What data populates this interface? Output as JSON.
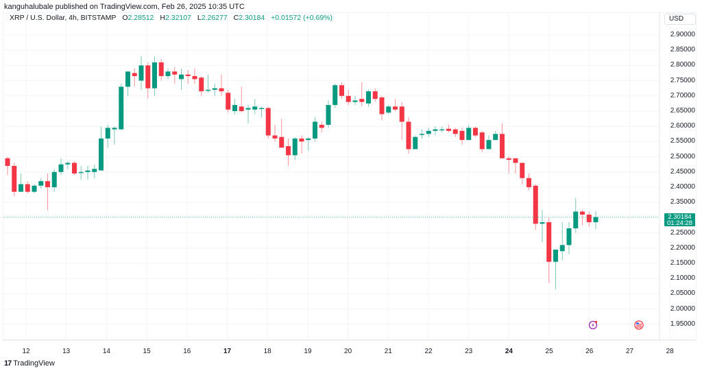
{
  "header": {
    "publish_line": "kanguhalubale published on TradingView.com, Feb 26, 2025 10:35 UTC"
  },
  "legend": {
    "symbol": "XRP / U.S. Dollar, 4h, BITSTAMP",
    "o_label": "O",
    "o_value": "2.28512",
    "h_label": "H",
    "h_value": "2.32107",
    "l_label": "L",
    "l_value": "2.26277",
    "c_label": "C",
    "c_value": "2.30184",
    "change": "+0.01572 (+0.69%)"
  },
  "price_axis": {
    "currency": "USD",
    "labels": [
      "2.90000",
      "2.85000",
      "2.80000",
      "2.75000",
      "2.70000",
      "2.65000",
      "2.60000",
      "2.55000",
      "2.50000",
      "2.45000",
      "2.40000",
      "2.35000",
      "2.25000",
      "2.20000",
      "2.15000",
      "2.10000",
      "2.05000",
      "2.00000",
      "1.95000"
    ],
    "last_price": "2.30184",
    "countdown": "01:24:28"
  },
  "date_axis": {
    "labels": [
      {
        "text": "12",
        "bold": false
      },
      {
        "text": "13",
        "bold": false
      },
      {
        "text": "14",
        "bold": false
      },
      {
        "text": "15",
        "bold": false
      },
      {
        "text": "16",
        "bold": false
      },
      {
        "text": "17",
        "bold": true
      },
      {
        "text": "18",
        "bold": false
      },
      {
        "text": "19",
        "bold": false
      },
      {
        "text": "20",
        "bold": false
      },
      {
        "text": "21",
        "bold": false
      },
      {
        "text": "22",
        "bold": false
      },
      {
        "text": "23",
        "bold": false
      },
      {
        "text": "24",
        "bold": true
      },
      {
        "text": "25",
        "bold": false
      },
      {
        "text": "26",
        "bold": false
      },
      {
        "text": "27",
        "bold": false
      },
      {
        "text": "28",
        "bold": false
      }
    ]
  },
  "footer": {
    "logo_glyph": "17",
    "brand": "TradingView"
  },
  "colors": {
    "up": "#089981",
    "down": "#f23645",
    "grid": "#f3f4f7",
    "last_price_line": "#089981"
  },
  "icons": [
    "lightning-event-icon",
    "us-flag-event-icon"
  ],
  "chart_data": {
    "type": "candlestick",
    "title": "XRP / U.S. Dollar, 4h, BITSTAMP",
    "xlabel": "",
    "ylabel": "USD",
    "ylim": [
      1.92,
      2.93
    ],
    "timeframe": "4h",
    "x_ticks": [
      "12",
      "13",
      "14",
      "15",
      "16",
      "17",
      "18",
      "19",
      "20",
      "21",
      "22",
      "23",
      "24",
      "25",
      "26",
      "27",
      "28"
    ],
    "candles": [
      {
        "o": 2.495,
        "h": 2.5,
        "l": 2.44,
        "c": 2.47
      },
      {
        "o": 2.47,
        "h": 2.48,
        "l": 2.37,
        "c": 2.385
      },
      {
        "o": 2.385,
        "h": 2.445,
        "l": 2.385,
        "c": 2.41
      },
      {
        "o": 2.41,
        "h": 2.42,
        "l": 2.38,
        "c": 2.385
      },
      {
        "o": 2.385,
        "h": 2.41,
        "l": 2.38,
        "c": 2.405
      },
      {
        "o": 2.405,
        "h": 2.43,
        "l": 2.395,
        "c": 2.42
      },
      {
        "o": 2.42,
        "h": 2.445,
        "l": 2.325,
        "c": 2.4
      },
      {
        "o": 2.4,
        "h": 2.46,
        "l": 2.385,
        "c": 2.45
      },
      {
        "o": 2.45,
        "h": 2.495,
        "l": 2.44,
        "c": 2.475
      },
      {
        "o": 2.475,
        "h": 2.485,
        "l": 2.46,
        "c": 2.48
      },
      {
        "o": 2.48,
        "h": 2.485,
        "l": 2.44,
        "c": 2.445
      },
      {
        "o": 2.45,
        "h": 2.47,
        "l": 2.425,
        "c": 2.45
      },
      {
        "o": 2.45,
        "h": 2.47,
        "l": 2.425,
        "c": 2.455
      },
      {
        "o": 2.45,
        "h": 2.475,
        "l": 2.43,
        "c": 2.46
      },
      {
        "o": 2.455,
        "h": 2.6,
        "l": 2.455,
        "c": 2.56
      },
      {
        "o": 2.56,
        "h": 2.605,
        "l": 2.53,
        "c": 2.595
      },
      {
        "o": 2.59,
        "h": 2.6,
        "l": 2.54,
        "c": 2.595
      },
      {
        "o": 2.59,
        "h": 2.74,
        "l": 2.59,
        "c": 2.73
      },
      {
        "o": 2.73,
        "h": 2.78,
        "l": 2.7,
        "c": 2.78
      },
      {
        "o": 2.775,
        "h": 2.79,
        "l": 2.73,
        "c": 2.765
      },
      {
        "o": 2.75,
        "h": 2.83,
        "l": 2.72,
        "c": 2.8
      },
      {
        "o": 2.8,
        "h": 2.81,
        "l": 2.69,
        "c": 2.725
      },
      {
        "o": 2.725,
        "h": 2.83,
        "l": 2.7,
        "c": 2.81
      },
      {
        "o": 2.81,
        "h": 2.82,
        "l": 2.75,
        "c": 2.765
      },
      {
        "o": 2.765,
        "h": 2.79,
        "l": 2.755,
        "c": 2.78
      },
      {
        "o": 2.78,
        "h": 2.795,
        "l": 2.74,
        "c": 2.77
      },
      {
        "o": 2.755,
        "h": 2.79,
        "l": 2.72,
        "c": 2.77
      },
      {
        "o": 2.77,
        "h": 2.785,
        "l": 2.74,
        "c": 2.765
      },
      {
        "o": 2.765,
        "h": 2.79,
        "l": 2.74,
        "c": 2.755
      },
      {
        "o": 2.76,
        "h": 2.765,
        "l": 2.7,
        "c": 2.715
      },
      {
        "o": 2.72,
        "h": 2.77,
        "l": 2.71,
        "c": 2.72
      },
      {
        "o": 2.72,
        "h": 2.74,
        "l": 2.7,
        "c": 2.725
      },
      {
        "o": 2.725,
        "h": 2.77,
        "l": 2.7,
        "c": 2.715
      },
      {
        "o": 2.71,
        "h": 2.72,
        "l": 2.645,
        "c": 2.655
      },
      {
        "o": 2.65,
        "h": 2.69,
        "l": 2.64,
        "c": 2.67
      },
      {
        "o": 2.665,
        "h": 2.73,
        "l": 2.645,
        "c": 2.65
      },
      {
        "o": 2.655,
        "h": 2.67,
        "l": 2.61,
        "c": 2.66
      },
      {
        "o": 2.655,
        "h": 2.69,
        "l": 2.64,
        "c": 2.665
      },
      {
        "o": 2.66,
        "h": 2.665,
        "l": 2.63,
        "c": 2.66
      },
      {
        "o": 2.66,
        "h": 2.665,
        "l": 2.56,
        "c": 2.57
      },
      {
        "o": 2.57,
        "h": 2.605,
        "l": 2.55,
        "c": 2.56
      },
      {
        "o": 2.565,
        "h": 2.625,
        "l": 2.53,
        "c": 2.53
      },
      {
        "o": 2.535,
        "h": 2.56,
        "l": 2.47,
        "c": 2.505
      },
      {
        "o": 2.505,
        "h": 2.565,
        "l": 2.49,
        "c": 2.56
      },
      {
        "o": 2.56,
        "h": 2.57,
        "l": 2.51,
        "c": 2.55
      },
      {
        "o": 2.555,
        "h": 2.565,
        "l": 2.52,
        "c": 2.56
      },
      {
        "o": 2.56,
        "h": 2.63,
        "l": 2.55,
        "c": 2.615
      },
      {
        "o": 2.605,
        "h": 2.615,
        "l": 2.58,
        "c": 2.595
      },
      {
        "o": 2.605,
        "h": 2.685,
        "l": 2.595,
        "c": 2.67
      },
      {
        "o": 2.67,
        "h": 2.74,
        "l": 2.66,
        "c": 2.735
      },
      {
        "o": 2.735,
        "h": 2.745,
        "l": 2.69,
        "c": 2.7
      },
      {
        "o": 2.7,
        "h": 2.72,
        "l": 2.67,
        "c": 2.68
      },
      {
        "o": 2.68,
        "h": 2.7,
        "l": 2.67,
        "c": 2.685
      },
      {
        "o": 2.69,
        "h": 2.745,
        "l": 2.665,
        "c": 2.68
      },
      {
        "o": 2.675,
        "h": 2.72,
        "l": 2.665,
        "c": 2.715
      },
      {
        "o": 2.715,
        "h": 2.725,
        "l": 2.68,
        "c": 2.69
      },
      {
        "o": 2.695,
        "h": 2.7,
        "l": 2.62,
        "c": 2.64
      },
      {
        "o": 2.645,
        "h": 2.67,
        "l": 2.64,
        "c": 2.665
      },
      {
        "o": 2.665,
        "h": 2.69,
        "l": 2.65,
        "c": 2.655
      },
      {
        "o": 2.665,
        "h": 2.68,
        "l": 2.555,
        "c": 2.615
      },
      {
        "o": 2.615,
        "h": 2.63,
        "l": 2.51,
        "c": 2.525
      },
      {
        "o": 2.525,
        "h": 2.57,
        "l": 2.525,
        "c": 2.565
      },
      {
        "o": 2.575,
        "h": 2.59,
        "l": 2.56,
        "c": 2.575
      },
      {
        "o": 2.575,
        "h": 2.595,
        "l": 2.565,
        "c": 2.585
      },
      {
        "o": 2.585,
        "h": 2.6,
        "l": 2.57,
        "c": 2.59
      },
      {
        "o": 2.59,
        "h": 2.6,
        "l": 2.58,
        "c": 2.59
      },
      {
        "o": 2.592,
        "h": 2.605,
        "l": 2.58,
        "c": 2.585
      },
      {
        "o": 2.59,
        "h": 2.595,
        "l": 2.565,
        "c": 2.575
      },
      {
        "o": 2.585,
        "h": 2.595,
        "l": 2.54,
        "c": 2.555
      },
      {
        "o": 2.555,
        "h": 2.605,
        "l": 2.555,
        "c": 2.595
      },
      {
        "o": 2.595,
        "h": 2.6,
        "l": 2.565,
        "c": 2.57
      },
      {
        "o": 2.58,
        "h": 2.585,
        "l": 2.515,
        "c": 2.525
      },
      {
        "o": 2.525,
        "h": 2.57,
        "l": 2.525,
        "c": 2.555
      },
      {
        "o": 2.555,
        "h": 2.585,
        "l": 2.555,
        "c": 2.575
      },
      {
        "o": 2.575,
        "h": 2.61,
        "l": 2.5,
        "c": 2.495
      },
      {
        "o": 2.495,
        "h": 2.5,
        "l": 2.445,
        "c": 2.49
      },
      {
        "o": 2.495,
        "h": 2.495,
        "l": 2.445,
        "c": 2.48
      },
      {
        "o": 2.48,
        "h": 2.48,
        "l": 2.41,
        "c": 2.43
      },
      {
        "o": 2.43,
        "h": 2.445,
        "l": 2.39,
        "c": 2.4
      },
      {
        "o": 2.405,
        "h": 2.41,
        "l": 2.26,
        "c": 2.28
      },
      {
        "o": 2.28,
        "h": 2.325,
        "l": 2.22,
        "c": 2.285
      },
      {
        "o": 2.285,
        "h": 2.3,
        "l": 2.085,
        "c": 2.155
      },
      {
        "o": 2.155,
        "h": 2.175,
        "l": 2.065,
        "c": 2.195
      },
      {
        "o": 2.19,
        "h": 2.285,
        "l": 2.16,
        "c": 2.21
      },
      {
        "o": 2.21,
        "h": 2.285,
        "l": 2.18,
        "c": 2.265
      },
      {
        "o": 2.265,
        "h": 2.365,
        "l": 2.25,
        "c": 2.32
      },
      {
        "o": 2.32,
        "h": 2.325,
        "l": 2.275,
        "c": 2.31
      },
      {
        "o": 2.31,
        "h": 2.32,
        "l": 2.27,
        "c": 2.285
      },
      {
        "o": 2.285,
        "h": 2.321,
        "l": 2.263,
        "c": 2.302
      }
    ]
  }
}
